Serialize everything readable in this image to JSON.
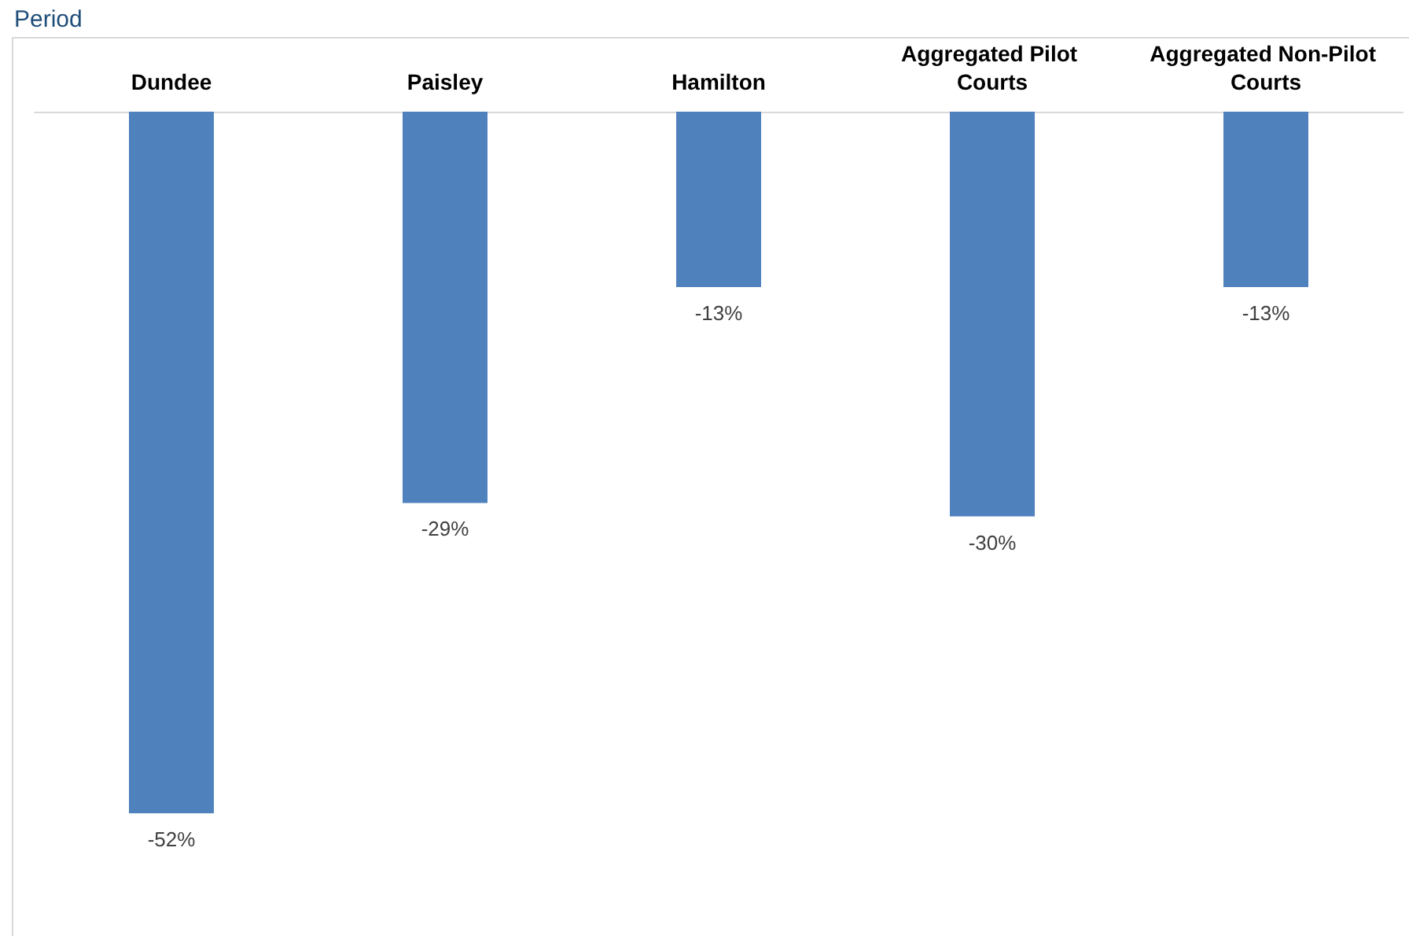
{
  "chart_data": {
    "type": "bar",
    "title": "Period",
    "categories": [
      "Dundee",
      "Paisley",
      "Hamilton",
      "Aggregated Pilot Courts",
      "Aggregated Non-Pilot Courts"
    ],
    "values": [
      -52,
      -29,
      -13,
      -30,
      -13
    ],
    "value_labels": [
      "-52%",
      "-29%",
      "-13%",
      "-30%",
      "-13%"
    ],
    "color": "#4f81bd"
  }
}
